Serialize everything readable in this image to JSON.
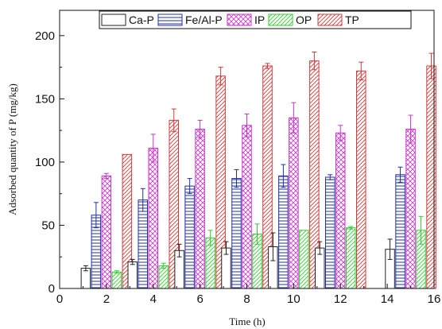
{
  "chart_data": {
    "type": "bar",
    "title": "",
    "xlabel": "Time (h)",
    "ylabel": "Adsorbed quantity of P (mg/kg)",
    "xlim": [
      0,
      16
    ],
    "ylim": [
      0,
      220
    ],
    "xticks": [
      0,
      2,
      4,
      6,
      8,
      10,
      12,
      14,
      16
    ],
    "yticks": [
      0,
      50,
      100,
      150,
      200
    ],
    "grid": false,
    "legend": "top",
    "categories": [
      2,
      4,
      6,
      8,
      10,
      12,
      15
    ],
    "series": [
      {
        "name": "Ca-P",
        "color": "#222222",
        "pattern": "hollow",
        "values": [
          16,
          21,
          30,
          32,
          33,
          32,
          31
        ],
        "errors": [
          2,
          2,
          5,
          5,
          11,
          5,
          8
        ]
      },
      {
        "name": "Fe/Al-P",
        "color": "#1f2fa8",
        "pattern": "horizontal",
        "values": [
          58,
          70,
          81,
          87,
          89,
          88,
          90
        ],
        "errors": [
          10,
          9,
          6,
          7,
          9,
          2,
          6
        ]
      },
      {
        "name": "IP",
        "color": "#cc33cc",
        "pattern": "crosshatch",
        "values": [
          89,
          111,
          126,
          129,
          135,
          123,
          126
        ],
        "errors": [
          2,
          11,
          7,
          9,
          12,
          6,
          11
        ]
      },
      {
        "name": "OP",
        "color": "#33cc33",
        "pattern": "diagonal",
        "values": [
          13,
          18,
          40,
          43,
          46,
          48,
          46
        ],
        "errors": [
          1,
          2,
          6,
          8,
          0,
          1,
          11
        ]
      },
      {
        "name": "TP",
        "color": "#d43a3a",
        "pattern": "diagonal",
        "values": [
          106,
          133,
          168,
          176,
          180,
          172,
          176
        ],
        "errors": [
          0,
          9,
          7,
          2,
          7,
          7,
          10
        ]
      }
    ]
  }
}
